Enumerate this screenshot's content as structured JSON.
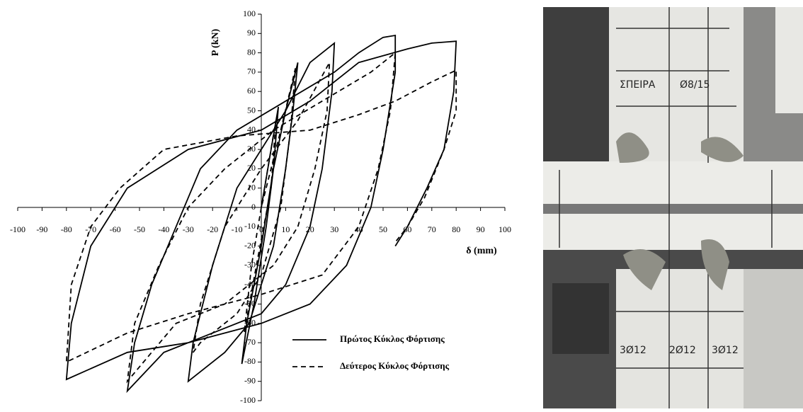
{
  "chart_data": {
    "type": "line",
    "x_label": "δ (mm)",
    "y_label": "P (kN)",
    "xlim": [
      -100,
      100
    ],
    "ylim": [
      -100,
      100
    ],
    "xticks": [
      -100,
      -90,
      -80,
      -70,
      -60,
      -50,
      -40,
      -30,
      -20,
      -10,
      0,
      10,
      20,
      30,
      40,
      50,
      60,
      70,
      80,
      90,
      100
    ],
    "yticks": [
      -100,
      -90,
      -80,
      -70,
      -60,
      -50,
      -40,
      -30,
      -20,
      -10,
      0,
      10,
      20,
      30,
      40,
      50,
      60,
      70,
      80,
      90,
      100
    ],
    "legend": "lower right",
    "series": [
      {
        "name": "Πρώτος Κύκλος Φόρτισης",
        "color": "#000000",
        "line_style": "solid",
        "x": [
          0,
          4,
          7,
          5,
          2,
          -3,
          -8,
          -6,
          0,
          5,
          10,
          15,
          13,
          10,
          5,
          -5,
          -15,
          -30,
          -28,
          -20,
          -10,
          0,
          10,
          20,
          30,
          29,
          25,
          20,
          10,
          0,
          -20,
          -40,
          -55,
          -52,
          -45,
          -35,
          -25,
          -10,
          10,
          30,
          40,
          50,
          55,
          55,
          50,
          45,
          35,
          20,
          0,
          -30,
          -55,
          -80,
          -78,
          -70,
          -55,
          -30,
          0,
          20,
          40,
          60,
          70,
          80,
          79,
          75,
          68,
          60,
          55
        ],
        "values": [
          0,
          30,
          52,
          20,
          -10,
          -50,
          -81,
          -60,
          -20,
          20,
          50,
          75,
          50,
          20,
          -20,
          -60,
          -75,
          -90,
          -70,
          -30,
          10,
          30,
          50,
          75,
          85,
          60,
          20,
          -10,
          -40,
          -55,
          -65,
          -75,
          -95,
          -70,
          -40,
          -10,
          20,
          40,
          55,
          70,
          80,
          88,
          89,
          70,
          30,
          0,
          -30,
          -50,
          -60,
          -70,
          -75,
          -89,
          -60,
          -20,
          10,
          30,
          40,
          55,
          75,
          82,
          85,
          86,
          60,
          30,
          10,
          -10,
          -20
        ]
      },
      {
        "name": "Δεύτερος Κύκλος Φόρτισης",
        "color": "#000000",
        "line_style": "dashed",
        "x": [
          0,
          6,
          4,
          -2,
          -7,
          -4,
          0,
          8,
          14,
          12,
          8,
          0,
          -10,
          -25,
          -28,
          -25,
          -15,
          0,
          15,
          28,
          27,
          22,
          15,
          5,
          -15,
          -35,
          -55,
          -52,
          -42,
          -30,
          -15,
          5,
          25,
          45,
          55,
          53,
          48,
          40,
          25,
          0,
          -30,
          -55,
          -80,
          -78,
          -70,
          -58,
          -40,
          -10,
          20,
          40,
          55,
          70,
          80,
          80,
          75,
          67,
          60,
          55
        ],
        "values": [
          0,
          45,
          10,
          -30,
          -65,
          -30,
          0,
          40,
          72,
          40,
          0,
          -35,
          -55,
          -70,
          -75,
          -50,
          -10,
          20,
          45,
          75,
          50,
          20,
          -10,
          -30,
          -50,
          -60,
          -90,
          -60,
          -30,
          0,
          20,
          40,
          55,
          70,
          80,
          50,
          20,
          -10,
          -35,
          -45,
          -55,
          -65,
          -80,
          -40,
          -10,
          10,
          30,
          37,
          40,
          48,
          55,
          65,
          71,
          50,
          30,
          5,
          -10,
          -18
        ]
      }
    ]
  },
  "photo": {
    "labels": [
      "ΣΠΕΙΡΑ",
      "Ø8/15",
      "3Ø12",
      "2Ø12",
      "3Ø12"
    ]
  }
}
